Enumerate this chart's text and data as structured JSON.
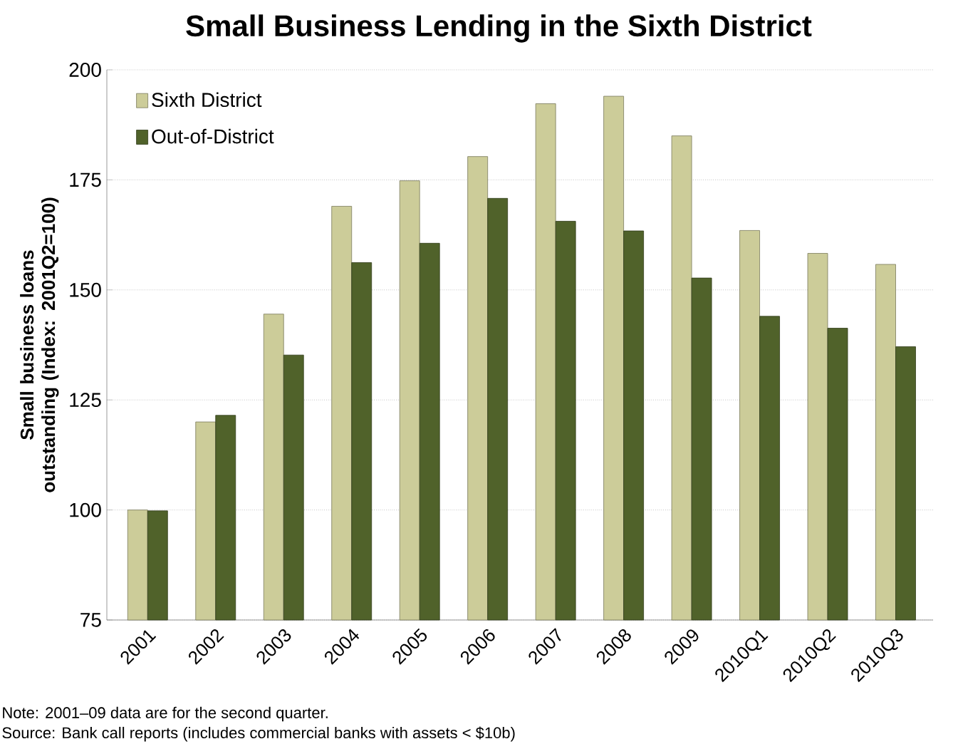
{
  "chart_data": {
    "type": "bar",
    "title": "Small Business Lending in the Sixth District",
    "ylabel": "Small business loans outstanding (Index: 2001Q2=100)",
    "categories": [
      "2001",
      "2002",
      "2003",
      "2004",
      "2005",
      "2006",
      "2007",
      "2008",
      "2009",
      "2010Q1",
      "2010Q2",
      "2010Q3"
    ],
    "series": [
      {
        "name": "Sixth District",
        "color": "#cccc99",
        "values": [
          100,
          120,
          144.5,
          169,
          174.8,
          180.3,
          192.3,
          194,
          185,
          163.5,
          158.3,
          155.8
        ]
      },
      {
        "name": "Out-of-District",
        "color": "#50622a",
        "values": [
          99.8,
          121.5,
          135.2,
          156.2,
          160.6,
          170.8,
          165.6,
          163.4,
          152.7,
          144,
          141.3,
          137.1
        ]
      }
    ],
    "ylim": [
      75,
      200
    ],
    "yticks": [
      75,
      100,
      125,
      150,
      175,
      200
    ],
    "grid": "y",
    "legend": "top left",
    "annotations": [
      "Note:  2001–09 data are for the second quarter.",
      "Source:  Bank call reports (includes commercial banks with assets < $10b)"
    ]
  }
}
